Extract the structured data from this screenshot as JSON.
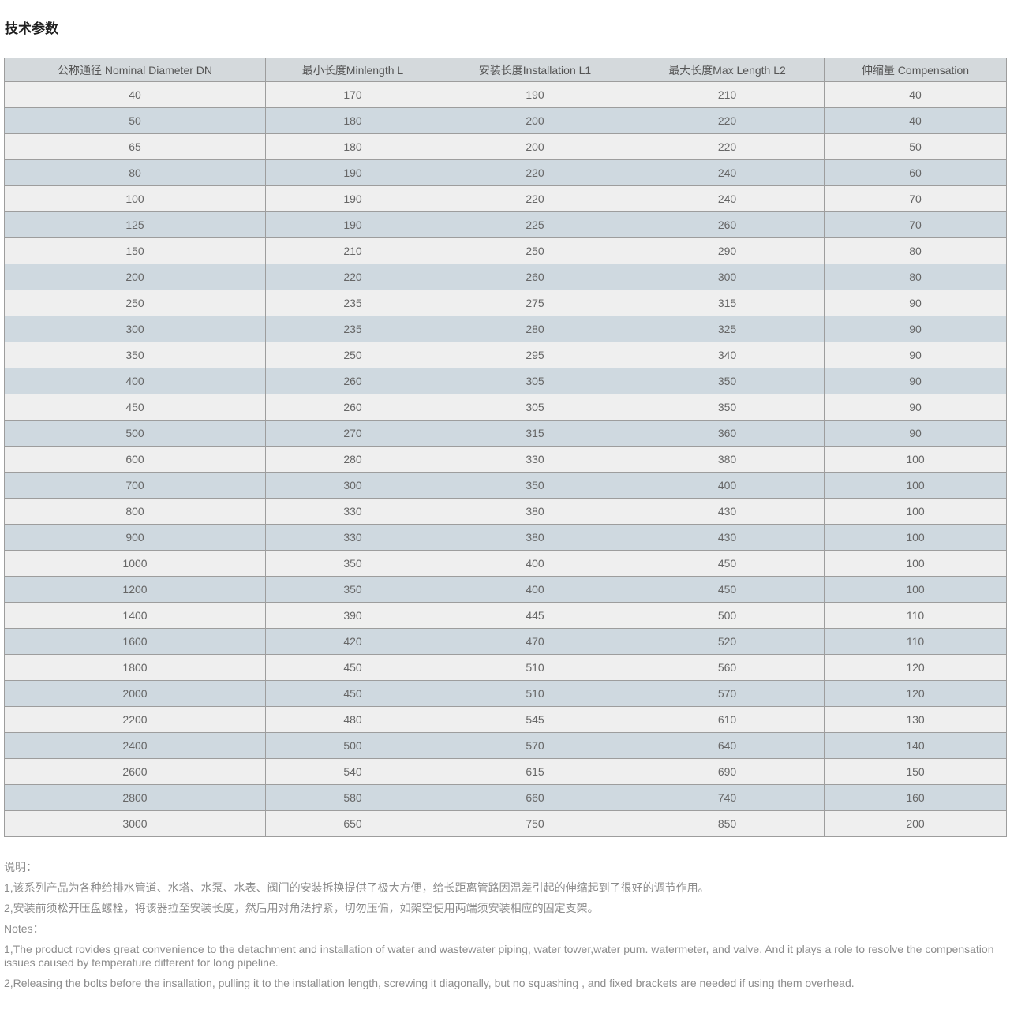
{
  "page": {
    "title": "技术参数"
  },
  "table": {
    "headers": [
      "公称通径 Nominal Diameter DN",
      "最小长度Minlength L",
      "安装长度Installation L1",
      "最大长度Max Length L2",
      "伸缩量 Compensation"
    ],
    "rows": [
      [
        "40",
        "170",
        "190",
        "210",
        "40"
      ],
      [
        "50",
        "180",
        "200",
        "220",
        "40"
      ],
      [
        "65",
        "180",
        "200",
        "220",
        "50"
      ],
      [
        "80",
        "190",
        "220",
        "240",
        "60"
      ],
      [
        "100",
        "190",
        "220",
        "240",
        "70"
      ],
      [
        "125",
        "190",
        "225",
        "260",
        "70"
      ],
      [
        "150",
        "210",
        "250",
        "290",
        "80"
      ],
      [
        "200",
        "220",
        "260",
        "300",
        "80"
      ],
      [
        "250",
        "235",
        "275",
        "315",
        "90"
      ],
      [
        "300",
        "235",
        "280",
        "325",
        "90"
      ],
      [
        "350",
        "250",
        "295",
        "340",
        "90"
      ],
      [
        "400",
        "260",
        "305",
        "350",
        "90"
      ],
      [
        "450",
        "260",
        "305",
        "350",
        "90"
      ],
      [
        "500",
        "270",
        "315",
        "360",
        "90"
      ],
      [
        "600",
        "280",
        "330",
        "380",
        "100"
      ],
      [
        "700",
        "300",
        "350",
        "400",
        "100"
      ],
      [
        "800",
        "330",
        "380",
        "430",
        "100"
      ],
      [
        "900",
        "330",
        "380",
        "430",
        "100"
      ],
      [
        "1000",
        "350",
        "400",
        "450",
        "100"
      ],
      [
        "1200",
        "350",
        "400",
        "450",
        "100"
      ],
      [
        "1400",
        "390",
        "445",
        "500",
        "110"
      ],
      [
        "1600",
        "420",
        "470",
        "520",
        "110"
      ],
      [
        "1800",
        "450",
        "510",
        "560",
        "120"
      ],
      [
        "2000",
        "450",
        "510",
        "570",
        "120"
      ],
      [
        "2200",
        "480",
        "545",
        "610",
        "130"
      ],
      [
        "2400",
        "500",
        "570",
        "640",
        "140"
      ],
      [
        "2600",
        "540",
        "615",
        "690",
        "150"
      ],
      [
        "2800",
        "580",
        "660",
        "740",
        "160"
      ],
      [
        "3000",
        "650",
        "750",
        "850",
        "200"
      ]
    ]
  },
  "notes": {
    "cn_title": "说明：",
    "cn_lines": [
      "1,该系列产品为各种给排水管道、水塔、水泵、水表、阀门的安装拆换提供了极大方便，给长距离管路因温差引起的伸缩起到了很好的调节作用。",
      "2,安装前须松开压盘螺栓，将该器拉至安装长度，然后用对角法拧紧，切勿压偏，如架空使用两端须安装相应的固定支架。"
    ],
    "en_title": "Notes：",
    "en_lines": [
      "1,The product rovides great convenience to the detachment and installation of water and wastewater piping, water tower,water pum. watermeter, and valve. And it plays a role to resolve the compensation issues caused by temperature different for long pipeline.",
      "2,Releasing the bolts before the insallation, pulling it to the installation length, screwing it diagonally, but no squashing , and fixed brackets are needed if using them overhead."
    ]
  },
  "colors": {
    "header_bg": "#d4d9dc",
    "row_light": "#efefef",
    "row_blue": "#cfd9e0",
    "border": "#9d9d9d",
    "cell_text": "#666666",
    "notes_text": "#8c8c8c"
  }
}
